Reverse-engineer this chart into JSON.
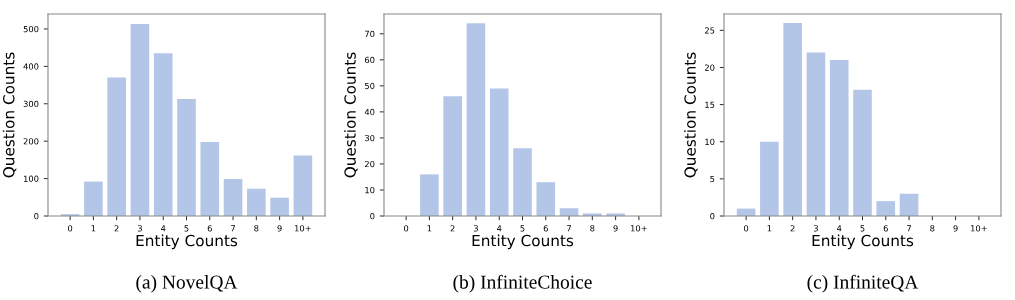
{
  "chart_data": [
    {
      "type": "bar",
      "title": "(a) NovelQA",
      "xlabel": "Entity Counts",
      "ylabel": "Question Counts",
      "categories": [
        "0",
        "1",
        "2",
        "3",
        "4",
        "5",
        "6",
        "7",
        "8",
        "9",
        "10+"
      ],
      "values": [
        5,
        92,
        370,
        513,
        435,
        313,
        198,
        99,
        73,
        49,
        162
      ],
      "color": "#b4c6e7",
      "ylim": [
        0,
        540
      ],
      "yticks": [
        0,
        100,
        200,
        300,
        400,
        500
      ],
      "grid": false,
      "legend": false
    },
    {
      "type": "bar",
      "title": "(b) InfiniteChoice",
      "xlabel": "Entity Counts",
      "ylabel": "Question Counts",
      "categories": [
        "0",
        "1",
        "2",
        "3",
        "4",
        "5",
        "6",
        "7",
        "8",
        "9",
        "10+"
      ],
      "values": [
        0,
        16,
        46,
        74,
        49,
        26,
        13,
        3,
        1,
        1,
        0
      ],
      "color": "#b4c6e7",
      "ylim": [
        0,
        77.6
      ],
      "yticks": [
        0,
        10,
        20,
        30,
        40,
        50,
        60,
        70
      ],
      "grid": false,
      "legend": false
    },
    {
      "type": "bar",
      "title": "(c) InfiniteQA",
      "xlabel": "Entity Counts",
      "ylabel": "Question Counts",
      "categories": [
        "0",
        "1",
        "2",
        "3",
        "4",
        "5",
        "6",
        "7",
        "8",
        "9",
        "10+"
      ],
      "values": [
        1,
        10,
        26,
        22,
        21,
        17,
        2,
        3,
        0,
        0,
        0
      ],
      "color": "#b4c6e7",
      "ylim": [
        0,
        27.2
      ],
      "yticks": [
        0,
        5,
        10,
        15,
        20,
        25
      ],
      "grid": false,
      "legend": false
    }
  ]
}
